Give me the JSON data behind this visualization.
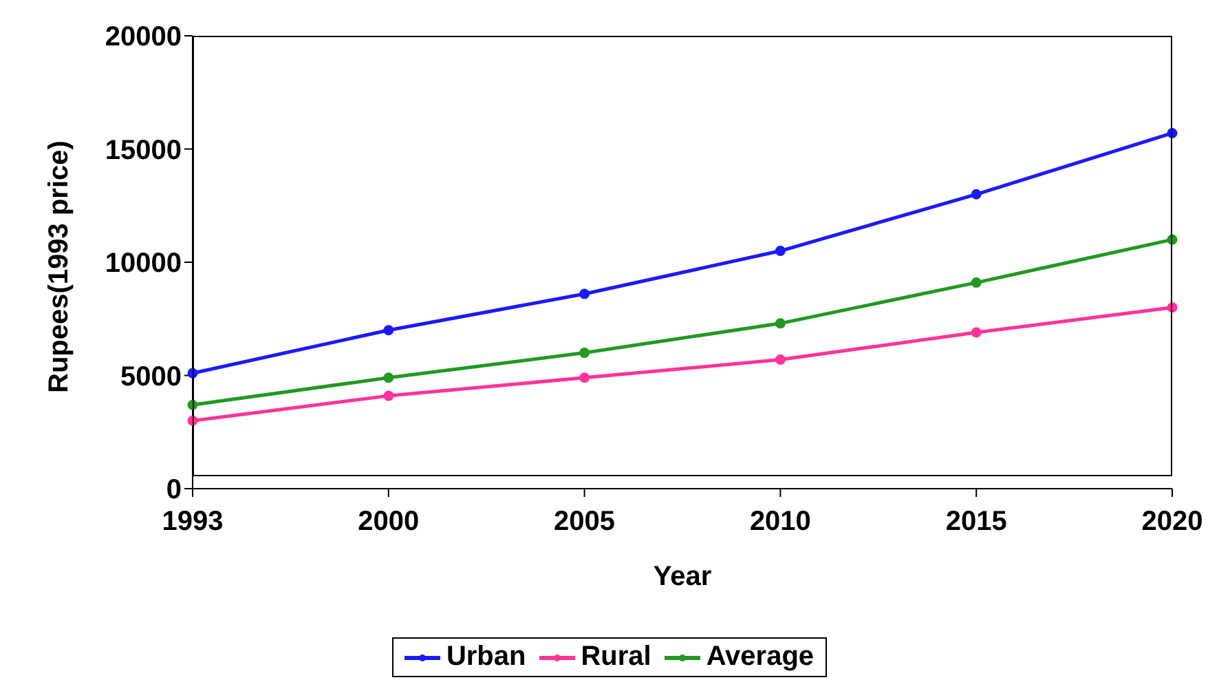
{
  "chart_data": {
    "type": "line",
    "xlabel": "Year",
    "ylabel": "Rupees(1993 price)",
    "categories": [
      "1993",
      "2000",
      "2005",
      "2010",
      "2015",
      "2020"
    ],
    "series": [
      {
        "name": "Urban",
        "color": "#1a1aff",
        "values": [
          5100,
          7000,
          8600,
          10500,
          13000,
          15700
        ]
      },
      {
        "name": "Rural",
        "color": "#ff3399",
        "values": [
          3000,
          4100,
          4900,
          5700,
          6900,
          8000
        ]
      },
      {
        "name": "Average",
        "color": "#229922",
        "values": [
          3700,
          4900,
          6000,
          7300,
          9100,
          11000
        ]
      }
    ],
    "ylim": [
      0,
      20000
    ],
    "yticks": [
      0,
      5000,
      10000,
      15000,
      20000
    ],
    "grid": false,
    "legend": "bottom",
    "marker": "circle",
    "line_style": "solid"
  }
}
